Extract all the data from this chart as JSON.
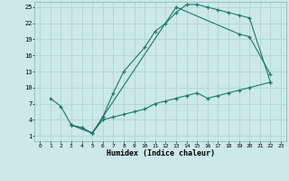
{
  "bg_color": "#cce8e8",
  "grid_color": "#b0d4d4",
  "line_color": "#1a7a6e",
  "xlabel": "Humidex (Indice chaleur)",
  "xlim": [
    -0.5,
    23.5
  ],
  "ylim": [
    0,
    26
  ],
  "xticks": [
    0,
    1,
    2,
    3,
    4,
    5,
    6,
    7,
    8,
    9,
    10,
    11,
    12,
    13,
    14,
    15,
    16,
    17,
    18,
    19,
    20,
    21,
    22,
    23
  ],
  "yticks": [
    1,
    4,
    7,
    10,
    13,
    16,
    19,
    22,
    25
  ],
  "line1_x": [
    1,
    2,
    3,
    4,
    5,
    6,
    7,
    8,
    10,
    11,
    12,
    13,
    14,
    15,
    16,
    17,
    18,
    19,
    20,
    22
  ],
  "line1_y": [
    8,
    6.5,
    3,
    2.5,
    1.5,
    4.5,
    9,
    13,
    17.5,
    20.5,
    22,
    24,
    25.5,
    25.5,
    25,
    24.5,
    24,
    23.5,
    23,
    11
  ],
  "line2_x": [
    3,
    4,
    5,
    6,
    13,
    19,
    20,
    22
  ],
  "line2_y": [
    3,
    2.5,
    1.5,
    4.5,
    25,
    20,
    19.5,
    12.5
  ],
  "line3_x": [
    3,
    5,
    6,
    7,
    8,
    9,
    10,
    11,
    12,
    13,
    14,
    15,
    16,
    17,
    18,
    19,
    20,
    22
  ],
  "line3_y": [
    3,
    1.5,
    4,
    4.5,
    5,
    5.5,
    6,
    7,
    7.5,
    8,
    8.5,
    9,
    8,
    8.5,
    9,
    9.5,
    10,
    11
  ]
}
